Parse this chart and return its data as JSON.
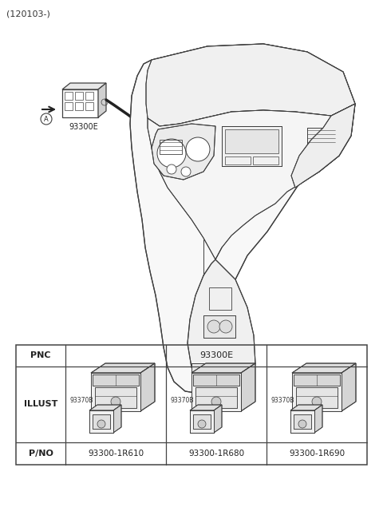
{
  "bg_color": "#ffffff",
  "figure_size": [
    4.8,
    6.55
  ],
  "dpi": 100,
  "header_text": "(120103-)",
  "table": {
    "col_header": "93300E",
    "illust_labels": [
      "93370B",
      "93370B",
      "93370B"
    ],
    "pno_values": [
      "93300-1R610",
      "93300-1R680",
      "93300-1R690"
    ]
  },
  "line_color": "#404040",
  "light_line_color": "#606060"
}
